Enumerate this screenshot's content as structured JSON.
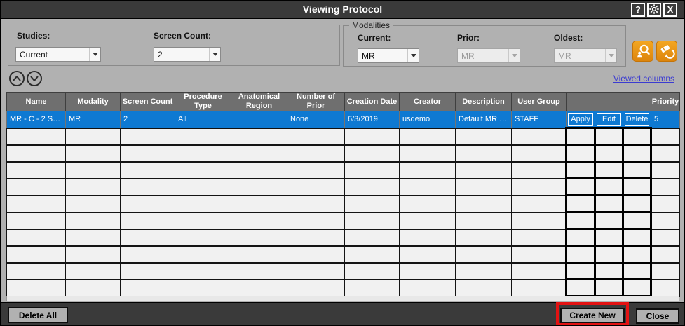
{
  "window": {
    "title": "Viewing Protocol",
    "help_glyph": "?",
    "close_glyph": "X"
  },
  "filters": {
    "studies": {
      "label": "Studies:",
      "value": "Current"
    },
    "screen_count": {
      "label": "Screen Count:",
      "value": "2"
    },
    "modalities": {
      "group_label": "Modalities",
      "current": {
        "label": "Current:",
        "value": "MR",
        "enabled": true
      },
      "prior": {
        "label": "Prior:",
        "value": "MR",
        "enabled": false
      },
      "oldest": {
        "label": "Oldest:",
        "value": "MR",
        "enabled": false
      }
    }
  },
  "toolbar": {
    "viewed_columns_link": "Viewed columns"
  },
  "table": {
    "headers": [
      "Name",
      "Modality",
      "Screen Count",
      "Procedure Type",
      "Anatomical Region",
      "Number of Prior",
      "Creation Date",
      "Creator",
      "Description",
      "User Group",
      "",
      "",
      "",
      "Priority"
    ],
    "row": {
      "name": "MR - C - 2 S…",
      "modality": "MR",
      "screen_count": "2",
      "procedure_type": "All",
      "anatomical_region": "",
      "number_of_prior": "None",
      "creation_date": "6/3/2019",
      "creator": "usdemo",
      "description": "Default MR …",
      "user_group": "STAFF",
      "apply_label": "Apply",
      "edit_label": "Edit",
      "delete_label": "Delete",
      "priority": "5"
    },
    "empty_row_count": 10
  },
  "footer": {
    "delete_all": "Delete All",
    "create_new": "Create New",
    "close": "Close"
  },
  "colors": {
    "titlebar": "#3a3a3a",
    "body": "#b1b1b1",
    "header_gray": "#6f6f6f",
    "selection_blue": "#0e79d2",
    "accent_orange": "#ee9310",
    "link_blue": "#3b3bd1",
    "annotation_red": "#e31212"
  }
}
